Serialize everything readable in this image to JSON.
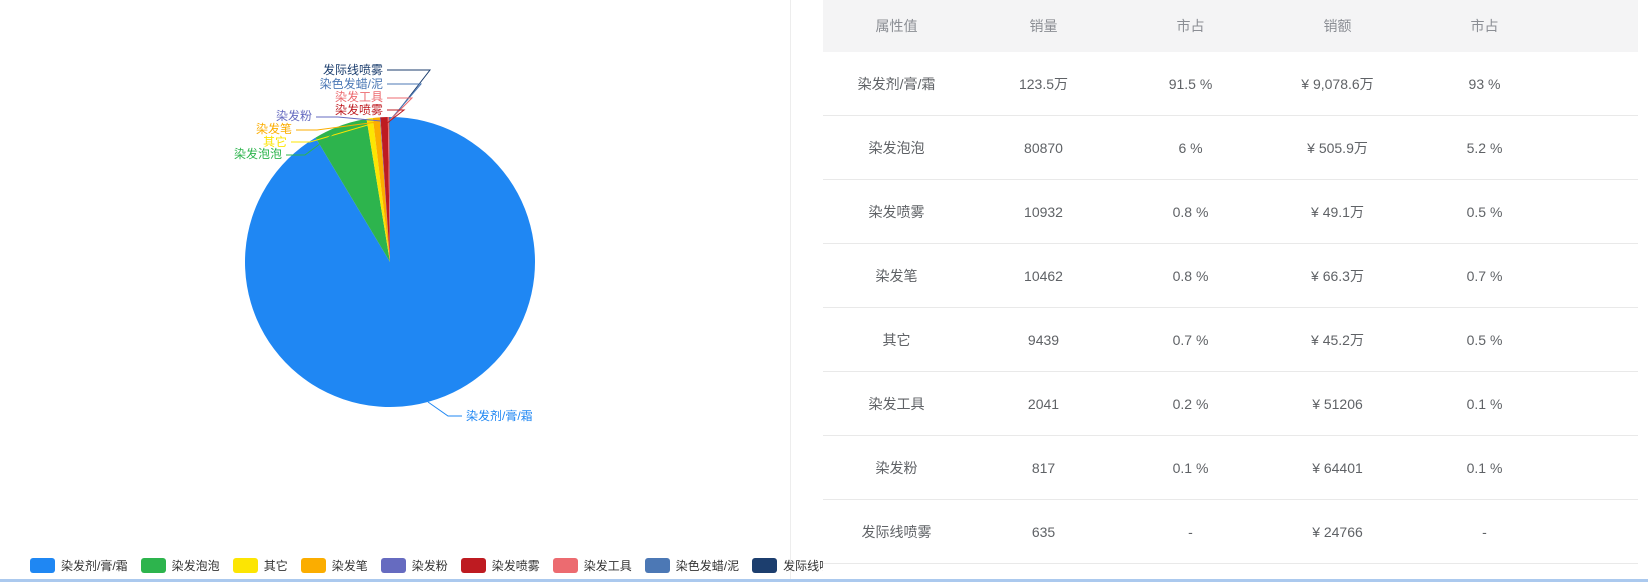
{
  "chart_data": {
    "type": "pie",
    "title": "",
    "legend_position": "bottom",
    "slices": [
      {
        "label": "染发剂/膏/霜",
        "share_pct": 91.5,
        "sales": "123.5万",
        "color": "#1F87F3"
      },
      {
        "label": "染发泡泡",
        "share_pct": 6.0,
        "sales": "80870",
        "color": "#2DB44D"
      },
      {
        "label": "其它",
        "share_pct": 0.7,
        "sales": "9439",
        "color": "#FCE503"
      },
      {
        "label": "染发笔",
        "share_pct": 0.78,
        "sales": "10462",
        "color": "#FBAD00"
      },
      {
        "label": "染发粉",
        "share_pct": 0.06,
        "sales": "817",
        "color": "#666BC0"
      },
      {
        "label": "染发喷雾",
        "share_pct": 0.81,
        "sales": "10932",
        "color": "#BE1B21"
      },
      {
        "label": "染发工具",
        "share_pct": 0.15,
        "sales": "2041",
        "color": "#EC6B70"
      },
      {
        "label": "染色发蜡/泥",
        "share_pct": 0.04,
        "sales": "",
        "color": "#4C78B5"
      },
      {
        "label": "发际线喷雾",
        "share_pct": 0.05,
        "sales": "635",
        "color": "#1C3E6E"
      }
    ]
  },
  "table": {
    "columns": [
      "属性值",
      "销量",
      "市占",
      "销额",
      "市占"
    ],
    "rows": [
      [
        "染发剂/膏/霜",
        "123.5万",
        "91.5 %",
        "¥ 9,078.6万",
        "93 %"
      ],
      [
        "染发泡泡",
        "80870",
        "6 %",
        "¥ 505.9万",
        "5.2 %"
      ],
      [
        "染发喷雾",
        "10932",
        "0.8 %",
        "¥ 49.1万",
        "0.5 %"
      ],
      [
        "染发笔",
        "10462",
        "0.8 %",
        "¥ 66.3万",
        "0.7 %"
      ],
      [
        "其它",
        "9439",
        "0.7 %",
        "¥ 45.2万",
        "0.5 %"
      ],
      [
        "染发工具",
        "2041",
        "0.2 %",
        "¥ 51206",
        "0.1 %"
      ],
      [
        "染发粉",
        "817",
        "0.1 %",
        "¥ 64401",
        "0.1 %"
      ],
      [
        "发际线喷雾",
        "635",
        "-",
        "¥ 24766",
        "-"
      ]
    ]
  },
  "colors": {
    "accent_line": "#abc9ee",
    "header_bg": "#f4f4f5",
    "row_divider": "#e9e9e9"
  }
}
